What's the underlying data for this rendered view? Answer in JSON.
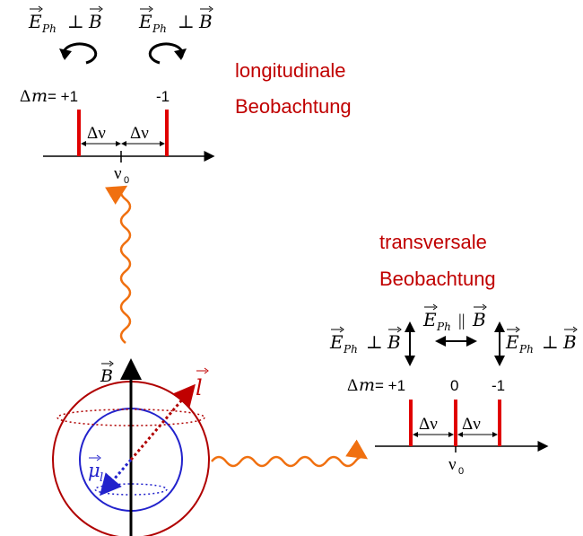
{
  "top_labels": {
    "e_ph": "E",
    "e_ph_sub": "Ph",
    "perp": "⊥",
    "b": "B",
    "delta": "Δ",
    "m": "m",
    "eq_plus1": "= +1",
    "minus1": "-1",
    "delta_nu": "Δν",
    "nu0_main": "ν",
    "nu0_sub": "0"
  },
  "longitudinal": {
    "line1": "longitudinale",
    "line2": "Beobachtung"
  },
  "transversal": {
    "line1": "transversale",
    "line2": "Beobachtung",
    "parallel": "||",
    "eq_plus1": "= +1",
    "zero": "0",
    "minus1": "-1"
  },
  "atom": {
    "b_axis": "B",
    "l_vector": "l",
    "mu_main": "μ",
    "mu_sub": "l"
  },
  "colors": {
    "red": "#c00000",
    "dark_red": "#b00000",
    "blue": "#2222cc",
    "orange": "#f07010",
    "black": "#000000"
  }
}
